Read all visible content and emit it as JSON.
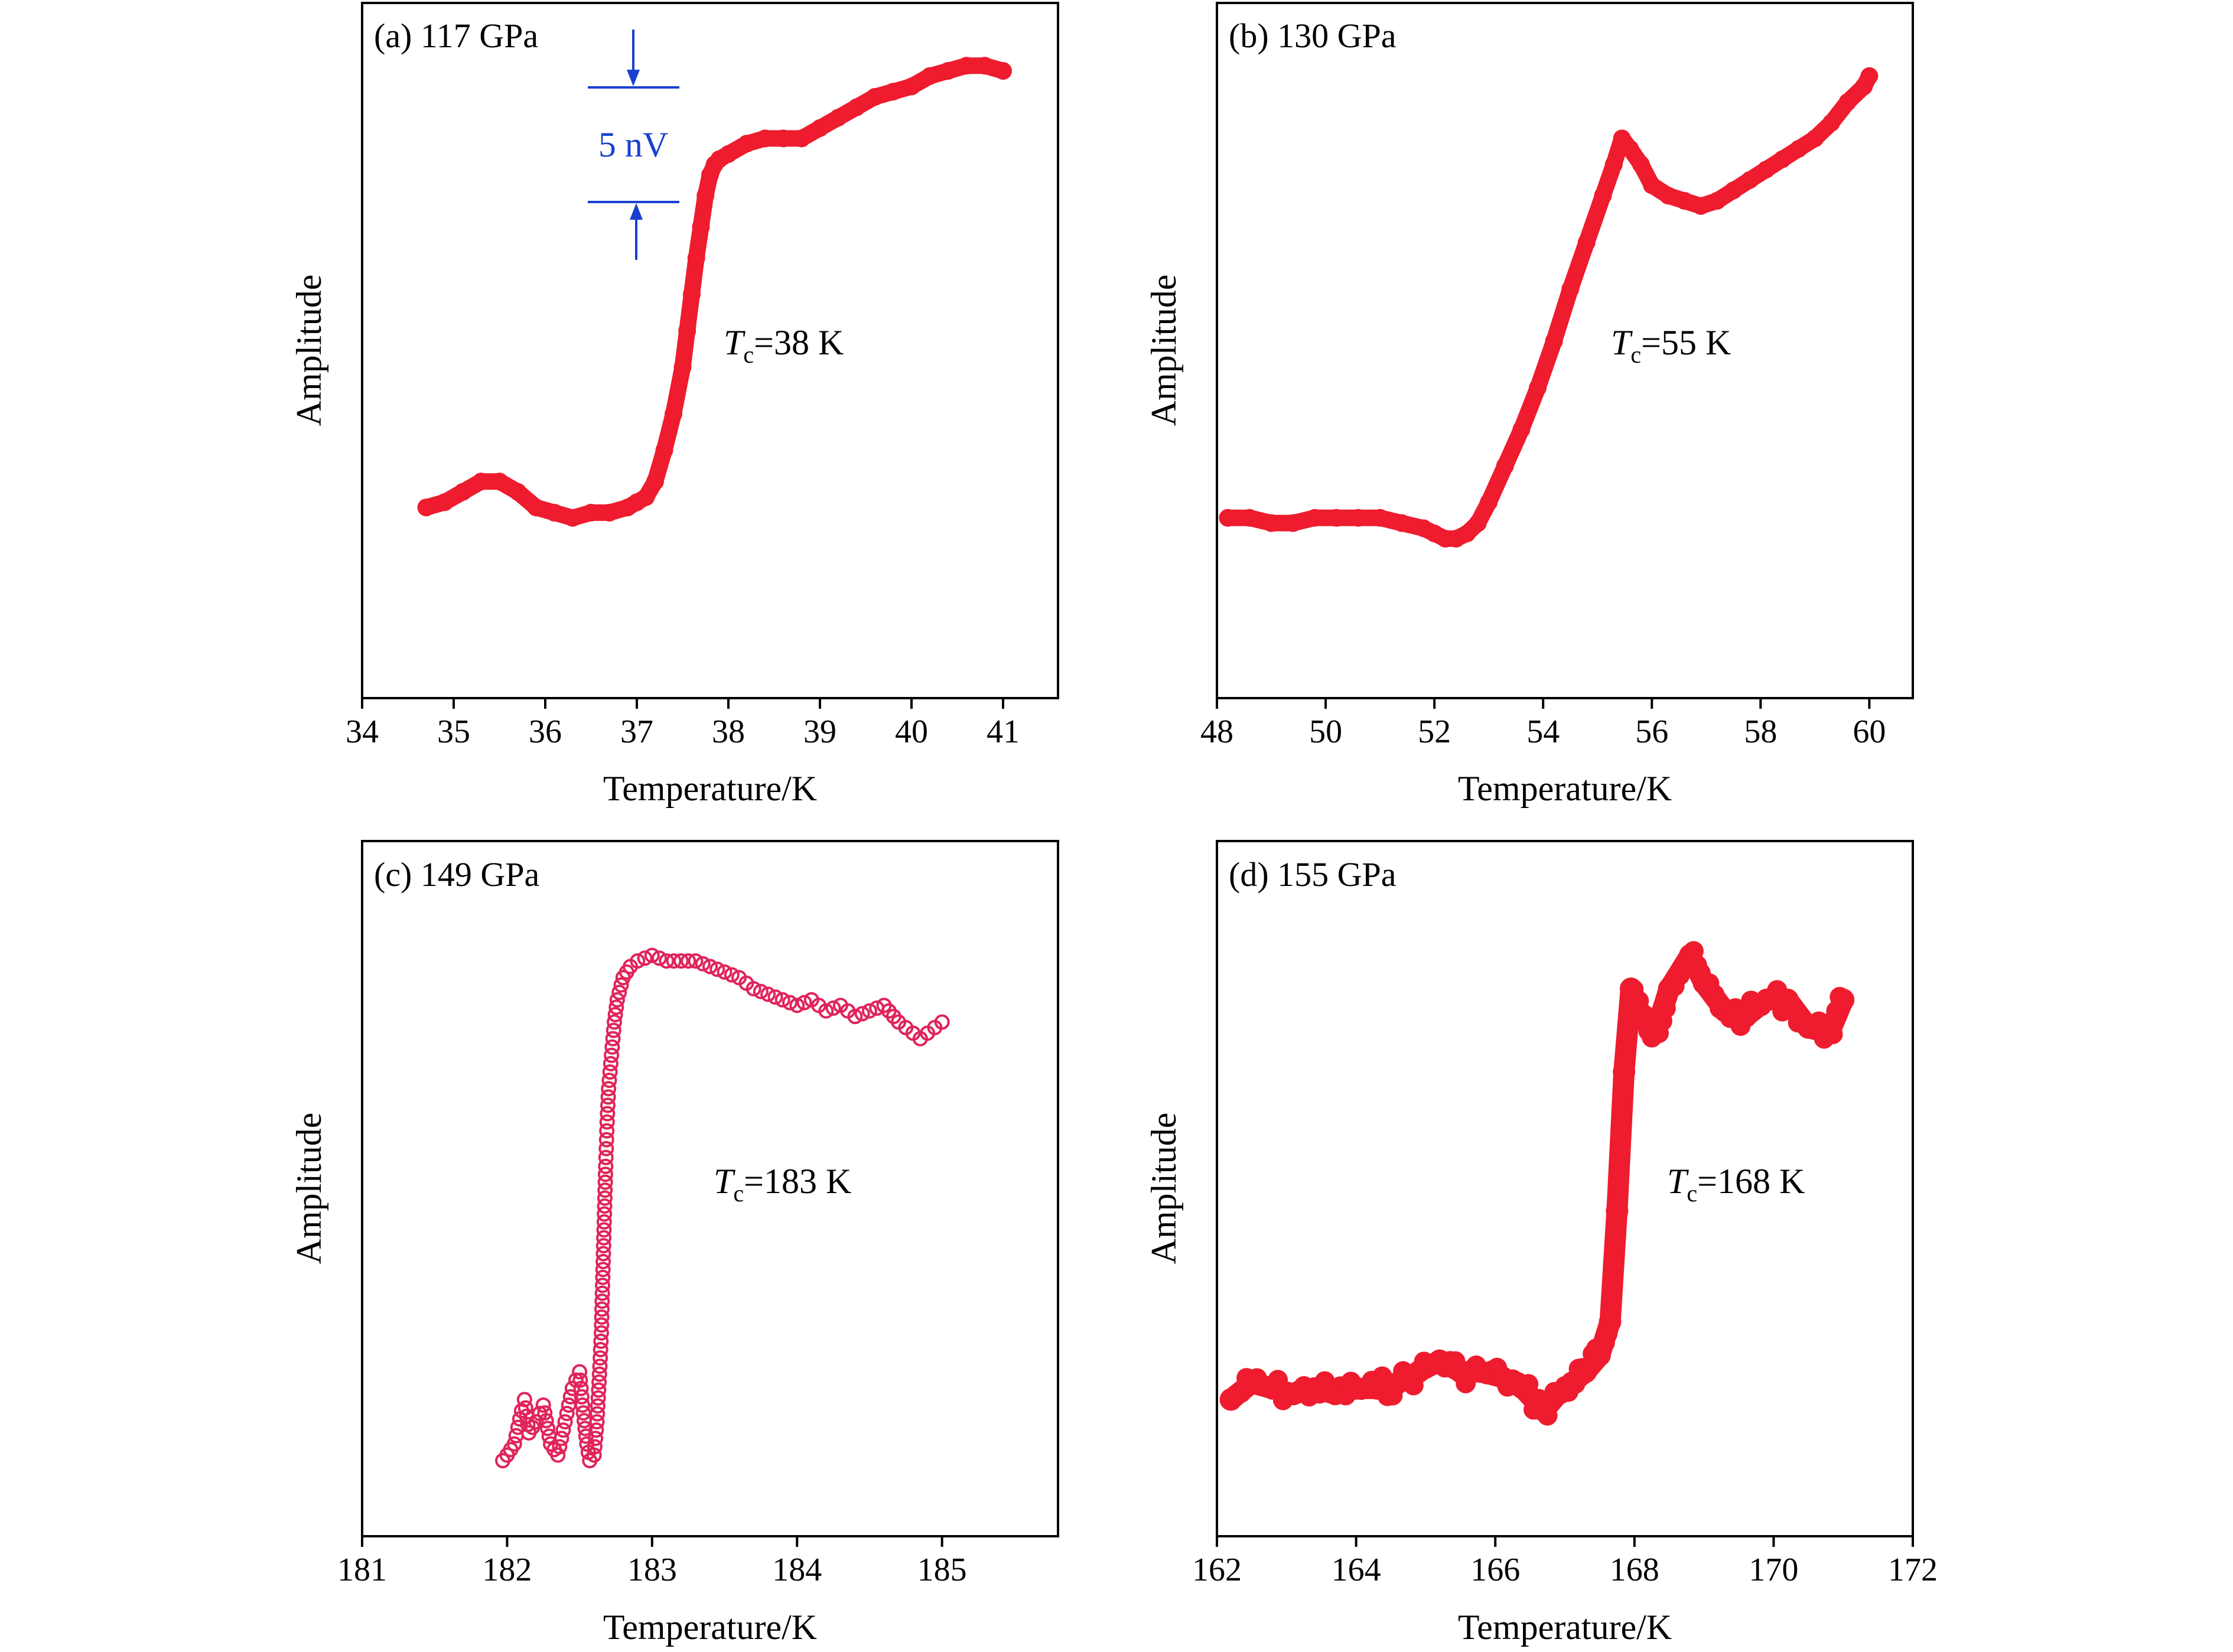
{
  "colors": {
    "series": "#ee1c2e",
    "series_open": "#e0245a",
    "scale_bar": "#1a3fd0",
    "axis": "#000000"
  },
  "chart_data": [
    {
      "type": "scatter",
      "title": "(a) 117 GPa",
      "xlabel": "Temperature/K",
      "ylabel": "Amplitude",
      "xlim": [
        34,
        41.6
      ],
      "ylim": [
        0,
        100
      ],
      "xticks": [
        "34",
        "35",
        "36",
        "37",
        "38",
        "39",
        "40",
        "41"
      ],
      "annotation": {
        "tc_symbol": "T",
        "tc_sub": "c",
        "tc_text": "=38 K"
      },
      "scale_bar": {
        "label": "5 nV",
        "value_amplitude": 17
      },
      "marker": "filled",
      "series": [
        {
          "x": [
            34.7,
            34.9,
            35.1,
            35.3,
            35.5,
            35.7,
            35.9,
            36.1,
            36.3,
            36.5,
            36.7,
            36.9,
            37.0,
            37.1,
            37.2,
            37.3,
            37.4,
            37.5,
            37.55,
            37.6,
            37.65,
            37.7,
            37.75,
            37.8,
            37.85,
            37.9,
            38.0,
            38.2,
            38.4,
            38.6,
            38.8,
            39.0,
            39.2,
            39.4,
            39.6,
            39.8,
            40.0,
            40.2,
            40.4,
            40.6,
            40.8,
            41.0
          ],
          "y": [
            16,
            17,
            19,
            21,
            21,
            19,
            16,
            15,
            14,
            15,
            15,
            16,
            17,
            18,
            21,
            27,
            34,
            43,
            50,
            57,
            64,
            70,
            76,
            80,
            82,
            83,
            84,
            86,
            87,
            87,
            87,
            89,
            91,
            93,
            95,
            96,
            97,
            99,
            100,
            101,
            101,
            100
          ]
        }
      ]
    },
    {
      "type": "scatter",
      "title": "(b) 130 GPa",
      "xlabel": "Temperature/K",
      "ylabel": "Amplitude",
      "xlim": [
        48,
        60.8
      ],
      "ylim": [
        0,
        100
      ],
      "xticks": [
        "48",
        "50",
        "52",
        "54",
        "56",
        "58",
        "60"
      ],
      "annotation": {
        "tc_symbol": "T",
        "tc_sub": "c",
        "tc_text": "=55 K"
      },
      "marker": "filled",
      "series": [
        {
          "x": [
            48.2,
            48.6,
            49.0,
            49.4,
            49.8,
            50.2,
            50.6,
            51.0,
            51.4,
            51.8,
            52.0,
            52.2,
            52.4,
            52.6,
            52.8,
            53.0,
            53.3,
            53.6,
            53.9,
            54.2,
            54.5,
            54.8,
            55.1,
            55.3,
            55.45,
            55.6,
            55.8,
            56.0,
            56.3,
            56.6,
            56.9,
            57.2,
            57.5,
            57.8,
            58.1,
            58.4,
            58.7,
            59.0,
            59.3,
            59.6,
            59.9,
            60.0
          ],
          "y": [
            14,
            14,
            13,
            13,
            14,
            14,
            14,
            14,
            13,
            12,
            11,
            10,
            10,
            11,
            13,
            17,
            24,
            31,
            39,
            48,
            58,
            67,
            76,
            82,
            87,
            85,
            82,
            78,
            76,
            75,
            74,
            75,
            77,
            79,
            81,
            83,
            85,
            87,
            90,
            94,
            97,
            99
          ]
        }
      ]
    },
    {
      "type": "scatter",
      "title": "(c) 149 GPa",
      "xlabel": "Temperature/K",
      "ylabel": "Amplitude",
      "xlim": [
        181,
        185.8
      ],
      "ylim": [
        0,
        100
      ],
      "xticks": [
        "181",
        "182",
        "183",
        "184",
        "185"
      ],
      "annotation": {
        "tc_symbol": "T",
        "tc_sub": "c",
        "tc_text": "=183 K"
      },
      "marker": "open",
      "series": [
        {
          "x": [
            181.97,
            182.0,
            182.05,
            182.1,
            182.12,
            182.15,
            182.2,
            182.25,
            182.3,
            182.35,
            182.4,
            182.45,
            182.5,
            182.52,
            182.55,
            182.57,
            182.6,
            182.62,
            182.64,
            182.65,
            182.66,
            182.67,
            182.68,
            182.69,
            182.7,
            182.72,
            182.74,
            182.76,
            182.8,
            182.85,
            182.9,
            183.0,
            183.1,
            183.2,
            183.3,
            183.4,
            183.5,
            183.6,
            183.7,
            183.8,
            183.9,
            184.0,
            184.1,
            184.2,
            184.3,
            184.4,
            184.5,
            184.6,
            184.7,
            184.8,
            184.85,
            184.9,
            184.95,
            185.0
          ],
          "y": [
            5,
            6,
            8,
            14,
            16,
            10,
            12,
            15,
            8,
            6,
            12,
            18,
            21,
            15,
            8,
            5,
            6,
            12,
            22,
            28,
            38,
            48,
            58,
            66,
            72,
            78,
            84,
            88,
            92,
            94,
            95,
            96,
            95,
            95,
            95,
            94,
            93,
            92,
            90,
            89,
            88,
            87,
            88,
            86,
            87,
            85,
            86,
            87,
            84,
            82,
            81,
            82,
            83,
            84
          ]
        }
      ]
    },
    {
      "type": "scatter",
      "title": "(d) 155 GPa",
      "xlabel": "Temperature/K",
      "ylabel": "Amplitude",
      "xlim": [
        162,
        172
      ],
      "ylim": [
        0,
        100
      ],
      "xticks": [
        "162",
        "164",
        "166",
        "168",
        "170",
        "172"
      ],
      "annotation": {
        "tc_symbol": "T",
        "tc_sub": "c",
        "tc_text": "=168 K"
      },
      "marker": "filled-noisy",
      "series": [
        {
          "x": [
            162.2,
            162.5,
            162.8,
            163.1,
            163.4,
            163.7,
            164.0,
            164.3,
            164.6,
            164.9,
            165.2,
            165.5,
            165.8,
            166.1,
            166.4,
            166.7,
            166.9,
            167.1,
            167.3,
            167.5,
            167.65,
            167.75,
            167.85,
            167.95,
            168.1,
            168.3,
            168.5,
            168.8,
            169.0,
            169.3,
            169.6,
            169.9,
            170.2,
            170.5,
            170.8,
            171.0
          ],
          "y": [
            16,
            19,
            18,
            17,
            18,
            17,
            18,
            18,
            19,
            21,
            23,
            21,
            21,
            20,
            18,
            14,
            17,
            19,
            21,
            24,
            30,
            50,
            75,
            90,
            85,
            82,
            90,
            96,
            91,
            86,
            85,
            88,
            88,
            83,
            82,
            88
          ]
        }
      ]
    }
  ]
}
